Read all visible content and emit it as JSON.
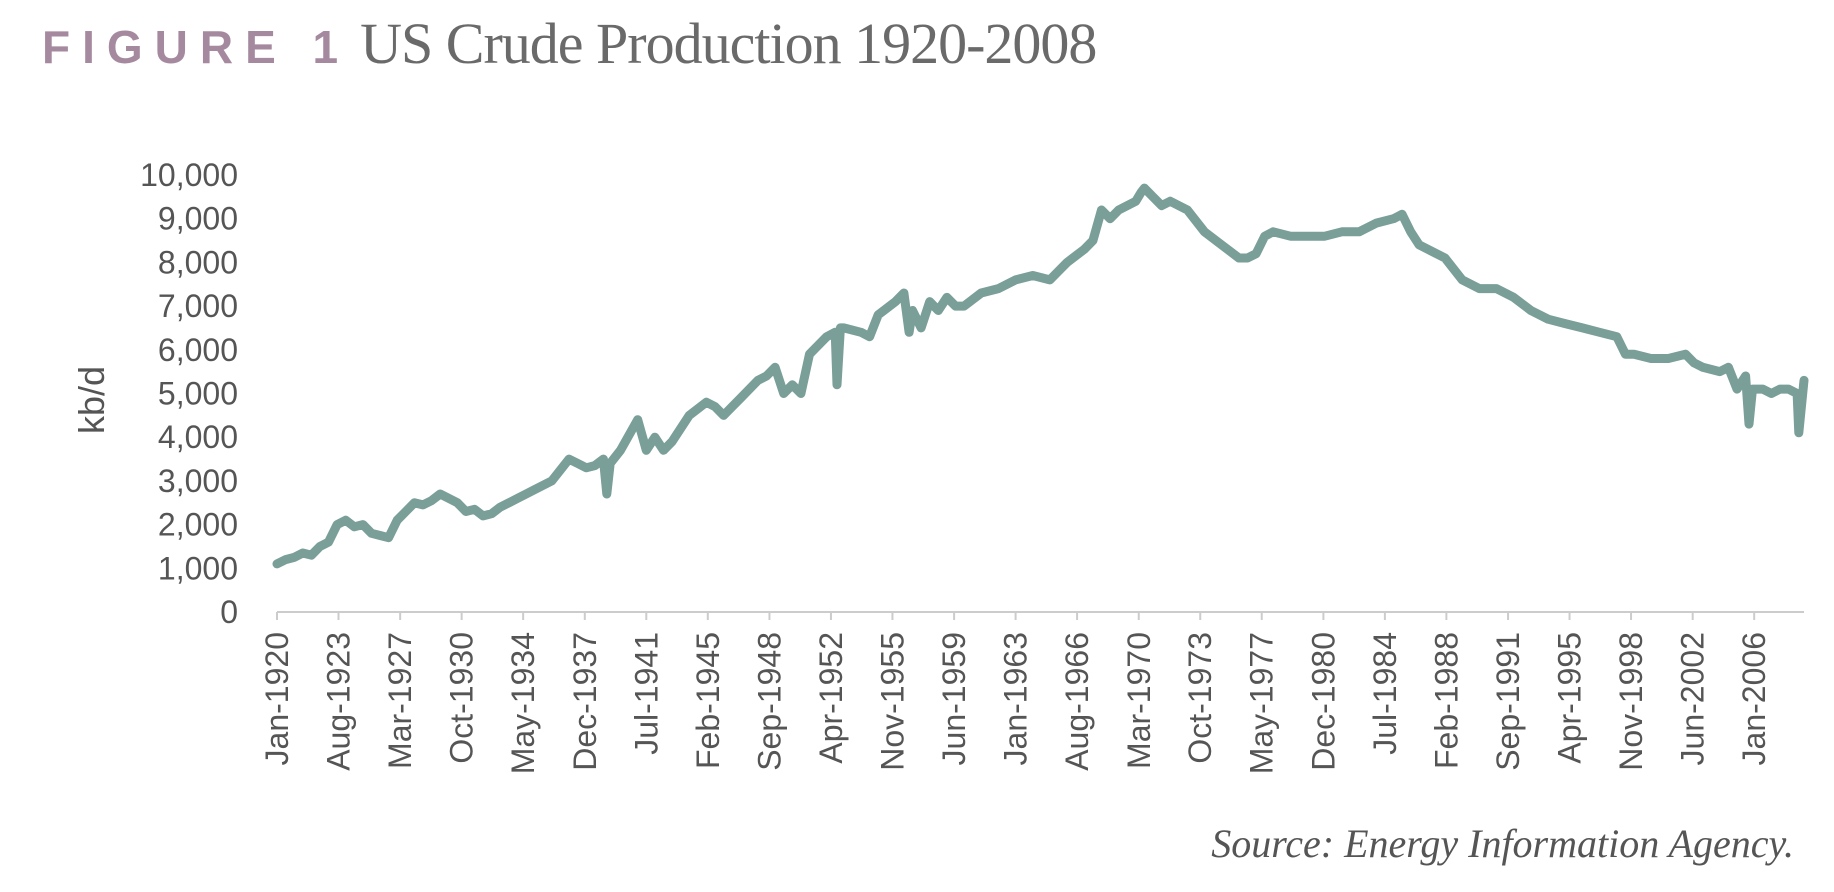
{
  "header": {
    "figure_label": "FIGURE 1",
    "title": "US Crude Production 1920-2008"
  },
  "source": "Source: Energy Information Agency.",
  "colors": {
    "line": "#7a9e98",
    "axis": "#cccccc",
    "label": "#a58a9f"
  },
  "chart_data": {
    "type": "line",
    "title": "US Crude Production 1920-2008",
    "ylabel": "kb/d",
    "xlabel": "",
    "ylim": [
      0,
      10000
    ],
    "yticks": [
      0,
      1000,
      2000,
      3000,
      4000,
      5000,
      6000,
      7000,
      8000,
      9000,
      10000
    ],
    "ytick_labels": [
      "0",
      "1,000",
      "2,000",
      "3,000",
      "4,000",
      "5,000",
      "6,000",
      "7,000",
      "8,000",
      "9,000",
      "10,000"
    ],
    "xlim": [
      1920.0,
      2008.9
    ],
    "xtick_labels": [
      "Jan-1920",
      "Aug-1923",
      "Mar-1927",
      "Oct-1930",
      "May-1934",
      "Dec-1937",
      "Jul-1941",
      "Feb-1945",
      "Sep-1948",
      "Apr-1952",
      "Nov-1955",
      "Jun-1959",
      "Jan-1963",
      "Aug-1966",
      "Mar-1970",
      "Oct-1973",
      "May-1977",
      "Dec-1980",
      "Jul-1984",
      "Feb-1988",
      "Sep-1991",
      "Apr-1995",
      "Nov-1998",
      "Jun-2002",
      "Jan-2006"
    ],
    "xtick_values": [
      1920.0,
      1923.58,
      1927.17,
      1930.75,
      1934.33,
      1937.92,
      1941.5,
      1945.08,
      1948.67,
      1952.25,
      1955.83,
      1959.42,
      1963.0,
      1966.58,
      1970.17,
      1973.75,
      1977.33,
      1980.92,
      1984.5,
      1988.08,
      1991.67,
      1995.25,
      1998.83,
      2002.42,
      2006.0
    ],
    "grid": false,
    "series": [
      {
        "x": [
          1920.0,
          1920.5,
          1921.0,
          1921.5,
          1922.0,
          1922.5,
          1923.0,
          1923.5,
          1924.0,
          1924.5,
          1925.0,
          1925.5,
          1926.0,
          1926.5,
          1927.0,
          1927.5,
          1928.0,
          1928.5,
          1929.0,
          1929.5,
          1930.0,
          1930.5,
          1931.0,
          1931.5,
          1932.0,
          1932.5,
          1933.0,
          1933.5,
          1934.0,
          1934.5,
          1935.0,
          1936.0,
          1937.0,
          1937.5,
          1938.0,
          1938.5,
          1939.0,
          1939.2,
          1939.4,
          1940.0,
          1941.0,
          1941.5,
          1942.0,
          1942.5,
          1943.0,
          1944.0,
          1945.0,
          1945.5,
          1946.0,
          1946.5,
          1947.0,
          1948.0,
          1948.5,
          1949.0,
          1949.5,
          1950.0,
          1950.5,
          1951.0,
          1952.0,
          1952.5,
          1952.6,
          1952.8,
          1953.0,
          1954.0,
          1954.5,
          1955.0,
          1956.0,
          1956.5,
          1956.8,
          1957.0,
          1957.5,
          1958.0,
          1958.5,
          1959.0,
          1959.5,
          1960.0,
          1961.0,
          1962.0,
          1963.0,
          1964.0,
          1965.0,
          1965.5,
          1966.0,
          1967.0,
          1967.5,
          1968.0,
          1968.5,
          1969.0,
          1970.0,
          1970.3,
          1970.5,
          1971.0,
          1971.5,
          1972.0,
          1973.0,
          1974.0,
          1975.0,
          1976.0,
          1976.5,
          1977.0,
          1977.5,
          1978.0,
          1979.0,
          1980.0,
          1981.0,
          1982.0,
          1983.0,
          1984.0,
          1985.0,
          1985.5,
          1986.0,
          1986.5,
          1987.0,
          1988.0,
          1989.0,
          1990.0,
          1991.0,
          1992.0,
          1993.0,
          1994.0,
          1995.0,
          1996.0,
          1997.0,
          1998.0,
          1998.5,
          1999.0,
          2000.0,
          2001.0,
          2002.0,
          2002.5,
          2003.0,
          2004.0,
          2004.5,
          2005.0,
          2005.5,
          2005.7,
          2005.9,
          2006.5,
          2007.0,
          2007.5,
          2008.0,
          2008.5,
          2008.6,
          2008.9
        ],
        "y": [
          1100,
          1200,
          1250,
          1350,
          1300,
          1500,
          1600,
          2000,
          2100,
          1950,
          2000,
          1800,
          1750,
          1700,
          2100,
          2300,
          2500,
          2450,
          2550,
          2700,
          2600,
          2500,
          2300,
          2350,
          2200,
          2250,
          2400,
          2500,
          2600,
          2700,
          2800,
          3000,
          3500,
          3400,
          3300,
          3350,
          3500,
          2700,
          3400,
          3700,
          4400,
          3700,
          4000,
          3700,
          3900,
          4500,
          4800,
          4700,
          4500,
          4700,
          4900,
          5300,
          5400,
          5600,
          5000,
          5200,
          5000,
          5900,
          6300,
          6400,
          5200,
          6500,
          6500,
          6400,
          6300,
          6800,
          7100,
          7300,
          6400,
          6900,
          6500,
          7100,
          6900,
          7200,
          7000,
          7000,
          7300,
          7400,
          7600,
          7700,
          7600,
          7800,
          8000,
          8300,
          8500,
          9200,
          9000,
          9200,
          9400,
          9600,
          9700,
          9500,
          9300,
          9400,
          9200,
          8700,
          8400,
          8100,
          8100,
          8200,
          8600,
          8700,
          8600,
          8600,
          8600,
          8700,
          8700,
          8900,
          9000,
          9100,
          8700,
          8400,
          8300,
          8100,
          7600,
          7400,
          7400,
          7200,
          6900,
          6700,
          6600,
          6500,
          6400,
          6300,
          5900,
          5900,
          5800,
          5800,
          5900,
          5700,
          5600,
          5500,
          5600,
          5100,
          5400,
          4300,
          5100,
          5100,
          5000,
          5100,
          5100,
          5000,
          4100,
          5300
        ]
      }
    ]
  }
}
